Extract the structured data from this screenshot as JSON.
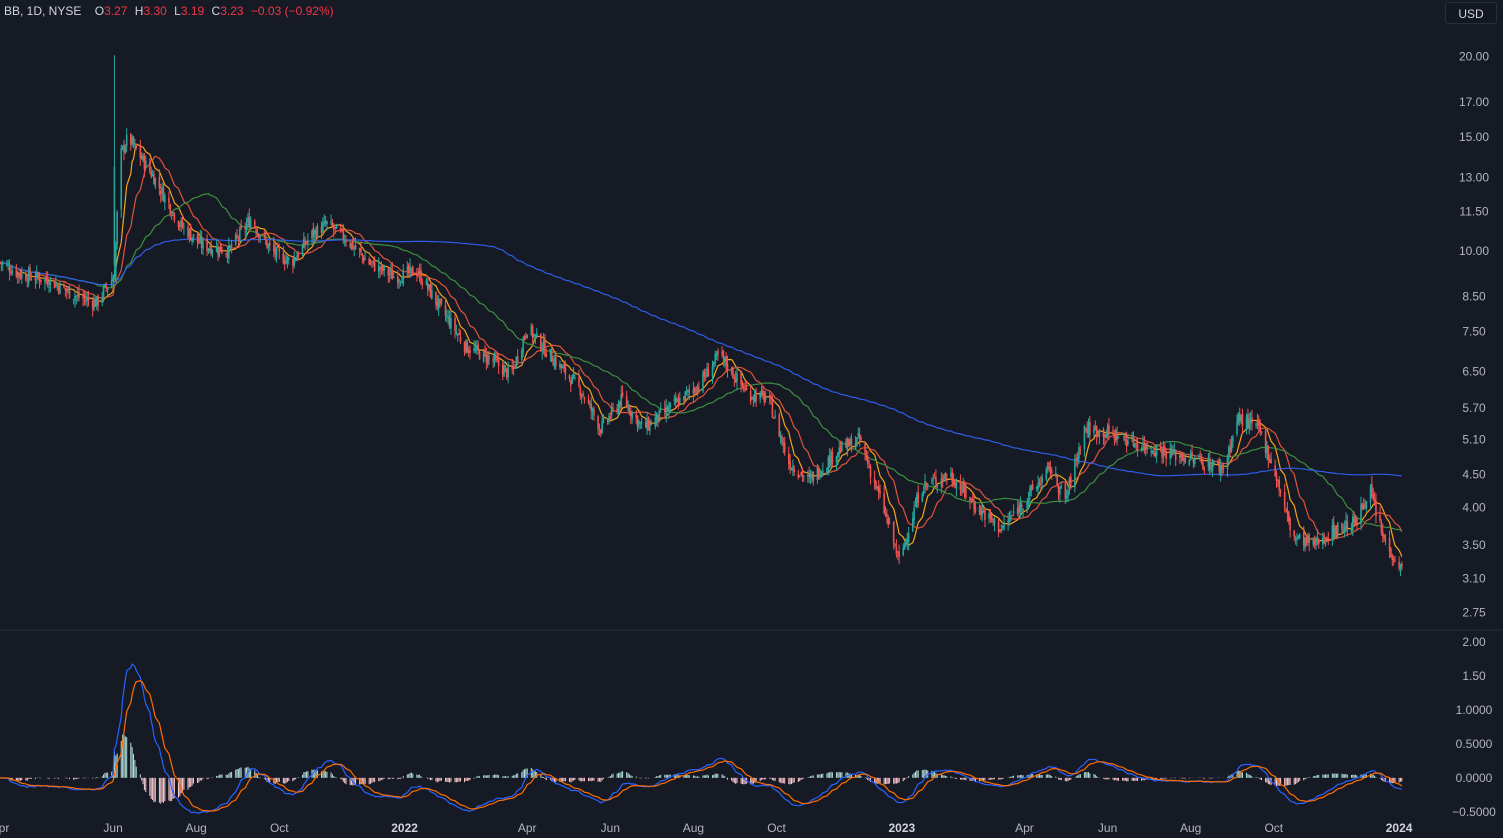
{
  "legend": {
    "symbol": "BB, 1D, NYSE",
    "o_label": "O",
    "o": "3.27",
    "h_label": "H",
    "h": "3.30",
    "l_label": "L",
    "l": "3.19",
    "c_label": "C",
    "c": "3.23",
    "change": "−0.03 (−0.92%)"
  },
  "currency": "USD",
  "colors": {
    "up": "#26a69a",
    "down": "#ef5350",
    "ma_fast": "#f7a21b",
    "ma_mid": "#e0533b",
    "ma_slow": "#3b8f3f",
    "ma_long": "#2c5ee8",
    "macd": "#2962ff",
    "signal": "#ff6d00",
    "background": "#161a25"
  },
  "chart_data": [
    {
      "type": "candlestick",
      "title": "BB, 1D, NYSE",
      "scale": "log",
      "ylim": [
        2.6,
        22
      ],
      "yticks": [
        "20.00",
        "17.00",
        "15.00",
        "13.00",
        "11.50",
        "10.00",
        "8.50",
        "7.50",
        "6.50",
        "5.70",
        "5.10",
        "4.50",
        "4.00",
        "3.50",
        "3.10",
        "2.75"
      ],
      "xlabels": [
        {
          "label": "pr",
          "date": "2021-04-01",
          "bold": false
        },
        {
          "label": "Jun",
          "date": "2021-06-01",
          "bold": false
        },
        {
          "label": "Aug",
          "date": "2021-08-01",
          "bold": false
        },
        {
          "label": "Oct",
          "date": "2021-10-01",
          "bold": false
        },
        {
          "label": "2022",
          "date": "2022-01-01",
          "bold": true
        },
        {
          "label": "Apr",
          "date": "2022-04-01",
          "bold": false
        },
        {
          "label": "Jun",
          "date": "2022-06-01",
          "bold": false
        },
        {
          "label": "Aug",
          "date": "2022-08-01",
          "bold": false
        },
        {
          "label": "Oct",
          "date": "2022-10-01",
          "bold": false
        },
        {
          "label": "2023",
          "date": "2023-01-01",
          "bold": true
        },
        {
          "label": "Apr",
          "date": "2023-04-01",
          "bold": false
        },
        {
          "label": "Jun",
          "date": "2023-06-01",
          "bold": false
        },
        {
          "label": "Aug",
          "date": "2023-08-01",
          "bold": false
        },
        {
          "label": "Oct",
          "date": "2023-10-01",
          "bold": false
        },
        {
          "label": "2024",
          "date": "2024-01-01",
          "bold": true
        }
      ],
      "close_path": {
        "x": [
          "2021-03-10",
          "2021-03-25",
          "2021-04-15",
          "2021-05-05",
          "2021-05-20",
          "2021-06-02",
          "2021-06-06",
          "2021-06-12",
          "2021-07-01",
          "2021-07-20",
          "2021-08-05",
          "2021-08-25",
          "2021-09-10",
          "2021-09-25",
          "2021-10-10",
          "2021-10-25",
          "2021-11-05",
          "2021-11-20",
          "2021-12-05",
          "2021-12-25",
          "2022-01-10",
          "2022-01-25",
          "2022-02-15",
          "2022-03-05",
          "2022-03-20",
          "2022-04-01",
          "2022-04-20",
          "2022-05-10",
          "2022-05-25",
          "2022-06-10",
          "2022-06-25",
          "2022-07-15",
          "2022-08-05",
          "2022-08-20",
          "2022-09-10",
          "2022-09-25",
          "2022-10-10",
          "2022-10-25",
          "2022-11-15",
          "2022-12-01",
          "2022-12-20",
          "2022-12-30",
          "2023-01-15",
          "2023-02-05",
          "2023-02-25",
          "2023-03-15",
          "2023-04-01",
          "2023-04-20",
          "2023-05-01",
          "2023-05-15",
          "2023-06-05",
          "2023-06-25",
          "2023-07-10",
          "2023-07-25",
          "2023-08-10",
          "2023-08-25",
          "2023-09-05",
          "2023-09-20",
          "2023-10-01",
          "2023-10-15",
          "2023-10-30",
          "2023-11-15",
          "2023-12-01",
          "2023-12-10",
          "2023-12-20",
          "2024-01-03"
        ],
        "close": [
          9.6,
          9.2,
          9.0,
          8.5,
          8.3,
          9.2,
          14.0,
          15.0,
          13.0,
          11.0,
          10.2,
          10.0,
          11.2,
          10.0,
          9.6,
          10.6,
          11.0,
          10.4,
          9.6,
          9.1,
          9.3,
          8.3,
          7.1,
          6.8,
          6.4,
          7.6,
          6.8,
          6.1,
          5.3,
          5.9,
          5.3,
          5.7,
          6.2,
          6.9,
          6.0,
          5.9,
          4.7,
          4.4,
          4.9,
          5.1,
          3.9,
          3.3,
          4.3,
          4.5,
          4.0,
          3.7,
          4.1,
          4.6,
          4.1,
          5.3,
          5.2,
          5.0,
          4.9,
          4.8,
          4.7,
          4.6,
          5.5,
          5.3,
          4.6,
          3.6,
          3.5,
          3.7,
          3.8,
          4.3,
          3.6,
          3.2
        ]
      },
      "moving_averages": [
        {
          "role": "short",
          "color": "#f7a21b",
          "period": 10
        },
        {
          "role": "medium",
          "color": "#e0533b",
          "period": 20
        },
        {
          "role": "slow",
          "color": "#3b8f3f",
          "period": 50
        },
        {
          "role": "long",
          "color": "#2c5ee8",
          "period": 200
        }
      ],
      "last_close": 3.23
    },
    {
      "type": "macd",
      "yticks": [
        "2.00",
        "1.50",
        "1.0000",
        "0.5000",
        "0.0000",
        "−0.5000"
      ],
      "ylim": [
        -0.62,
        2.1
      ]
    }
  ]
}
